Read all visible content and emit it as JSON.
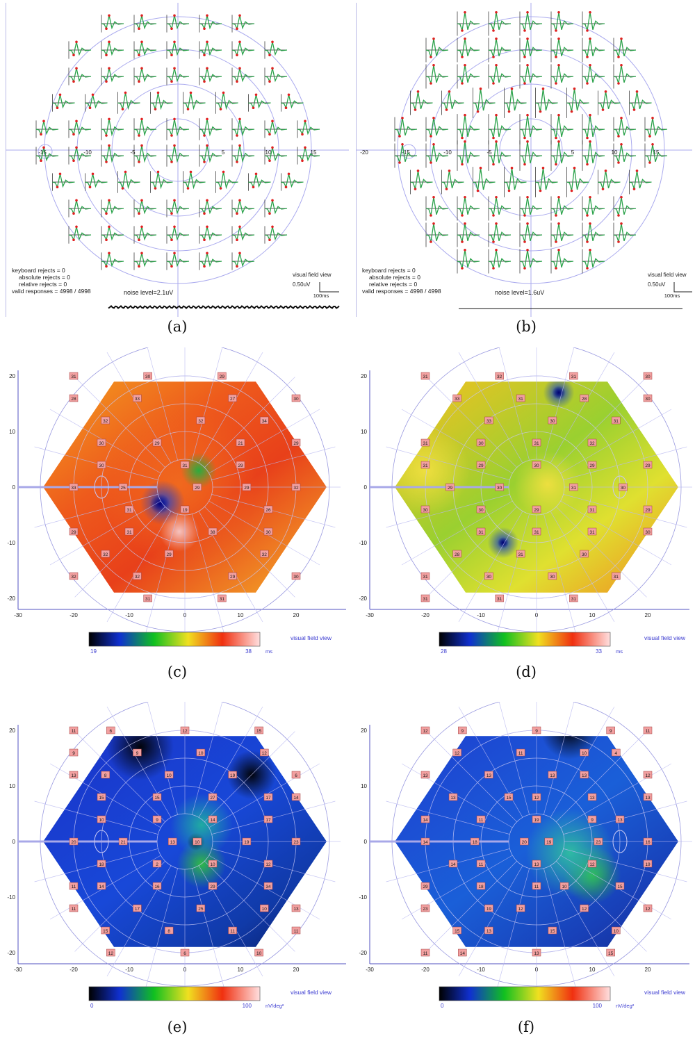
{
  "panels": [
    {
      "id": "a",
      "caption": "(a)",
      "type": "trace",
      "rejects": [
        "keyboard rejects = 0",
        "absolute rejects = 0",
        "relative rejects = 0",
        "valid responses = 4998 / 4998"
      ],
      "noise": "noise level=2.1uV",
      "view": "visual field view",
      "scale_v": "0.50uV",
      "scale_t": "100ms",
      "x_ticks": [
        "-20",
        "-15",
        "-10",
        "-5",
        "5",
        "10",
        "15",
        "20"
      ]
    },
    {
      "id": "b",
      "caption": "(b)",
      "type": "trace",
      "rejects": [
        "keyboard rejects = 0",
        "absolute rejects = 0",
        "relative rejects = 0",
        "valid responses = 4998 / 4998"
      ],
      "noise": "noise level=1.6uV",
      "view": "visual field view",
      "scale_v": "0.50uV",
      "scale_t": "100ms",
      "x_ticks": [
        "-20",
        "-15",
        "-10",
        "-5",
        "5",
        "10",
        "15",
        "20"
      ]
    },
    {
      "id": "c",
      "caption": "(c)",
      "type": "map",
      "palette": "latency",
      "colorbar": {
        "min": "19",
        "max": "38",
        "unit": "ms"
      },
      "view": "visual field view",
      "x_ticks": [
        "-30",
        "-20",
        "-10",
        "0",
        "10",
        "20"
      ],
      "y_ticks": [
        "20",
        "10",
        "0",
        "-10",
        "-20"
      ],
      "cells": [
        "31",
        "30",
        "29",
        "28",
        "33",
        "27",
        "30",
        "32",
        "32",
        "34",
        "30",
        "29",
        "21",
        "29",
        "30",
        "31",
        "29",
        "33",
        "25",
        "29",
        "29",
        "32",
        "31",
        "19",
        "26",
        "29",
        "31",
        "38",
        "30",
        "32",
        "29",
        "32",
        "32",
        "32",
        "29",
        "30",
        "31",
        "31"
      ]
    },
    {
      "id": "d",
      "caption": "(d)",
      "type": "map",
      "palette": "latency",
      "colorbar": {
        "min": "28",
        "max": "33",
        "unit": "ms"
      },
      "view": "visual field view",
      "x_ticks": [
        "-30",
        "-20",
        "-10",
        "0",
        "10",
        "20"
      ],
      "y_ticks": [
        "20",
        "10",
        "0",
        "-10",
        "-20"
      ],
      "cells": [
        "31",
        "32",
        "31",
        "30",
        "33",
        "31",
        "28",
        "30",
        "33",
        "30",
        "31",
        "31",
        "30",
        "31",
        "32",
        "31",
        "29",
        "30",
        "29",
        "29",
        "29",
        "30",
        "31",
        "30",
        "30",
        "30",
        "29",
        "31",
        "29",
        "31",
        "31",
        "31",
        "30",
        "28",
        "31",
        "30",
        "31",
        "30",
        "30",
        "31",
        "31",
        "31",
        "31"
      ]
    },
    {
      "id": "e",
      "caption": "(e)",
      "type": "map",
      "palette": "density",
      "colorbar": {
        "min": "0",
        "max": "100",
        "unit": "nV/deg²"
      },
      "view": "visual field view",
      "x_ticks": [
        "-30",
        "-20",
        "-10",
        "0",
        "10",
        "20"
      ],
      "y_ticks": [
        "20",
        "10",
        "0",
        "-10",
        "-20"
      ],
      "cells": [
        "11",
        "6",
        "12",
        "15",
        "9",
        "9",
        "10",
        "12",
        "13",
        "8",
        "10",
        "19",
        "6",
        "15",
        "15",
        "27",
        "17",
        "14",
        "10",
        "9",
        "14",
        "17",
        "20",
        "21",
        "13",
        "10",
        "19",
        "23",
        "18",
        "2",
        "10",
        "12",
        "11",
        "14",
        "16",
        "29",
        "34",
        "11",
        "17",
        "25",
        "10",
        "13",
        "15",
        "8",
        "11",
        "11",
        "12",
        "6",
        "10"
      ]
    },
    {
      "id": "f",
      "caption": "(f)",
      "type": "map",
      "palette": "density",
      "colorbar": {
        "min": "0",
        "max": "100",
        "unit": "nV/deg²"
      },
      "view": "visual field view",
      "x_ticks": [
        "-30",
        "-20",
        "-10",
        "0",
        "10",
        "20"
      ],
      "y_ticks": [
        "20",
        "10",
        "0",
        "-10",
        "-20"
      ],
      "cells": [
        "12",
        "9",
        "9",
        "9",
        "11",
        "12",
        "11",
        "10",
        "4",
        "13",
        "13",
        "13",
        "13",
        "12",
        "13",
        "15",
        "12",
        "13",
        "13",
        "14",
        "11",
        "19",
        "9",
        "13",
        "14",
        "18",
        "20",
        "19",
        "23",
        "16",
        "14",
        "11",
        "13",
        "12",
        "19",
        "29",
        "18",
        "11",
        "10",
        "15",
        "23",
        "19",
        "12",
        "12",
        "12",
        "15",
        "13",
        "15",
        "10",
        "11",
        "14",
        "13",
        "15"
      ]
    }
  ]
}
